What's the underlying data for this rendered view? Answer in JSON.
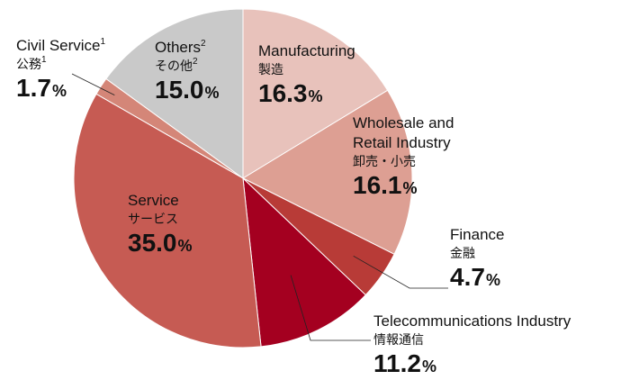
{
  "chart_data": {
    "type": "pie",
    "start": "12 o'clock",
    "direction": "clockwise",
    "slices": [
      {
        "key": "manufacturing",
        "name_en": "Manufacturing",
        "name_jp": "製造",
        "value": 16.3,
        "value_text": "16.3",
        "color": "#e8c2bb"
      },
      {
        "key": "wholesale",
        "name_en_lines": [
          "Wholesale and",
          "Retail Industry"
        ],
        "name_jp": "卸売・小売",
        "value": 16.1,
        "value_text": "16.1",
        "color": "#dd9f93"
      },
      {
        "key": "finance",
        "name_en": "Finance",
        "name_jp": "金融",
        "value": 4.7,
        "value_text": "4.7",
        "color": "#b83b37"
      },
      {
        "key": "telecom",
        "name_en": "Telecommunications Industry",
        "name_jp": "情報通信",
        "value": 11.2,
        "value_text": "11.2",
        "color": "#a40020"
      },
      {
        "key": "service",
        "name_en": "Service",
        "name_jp": "サービス",
        "value": 35.0,
        "value_text": "35.0",
        "color": "#c65b53"
      },
      {
        "key": "civil",
        "name_en": "Civil Service",
        "name_jp": "公務",
        "footnote": "1",
        "value": 1.7,
        "value_text": "1.7",
        "color": "#d48678"
      },
      {
        "key": "others",
        "name_en": "Others",
        "name_jp": "その他",
        "footnote": "2",
        "value": 15.0,
        "value_text": "15.0",
        "color": "#c9c9c9"
      }
    ],
    "percent_sign": "%"
  }
}
